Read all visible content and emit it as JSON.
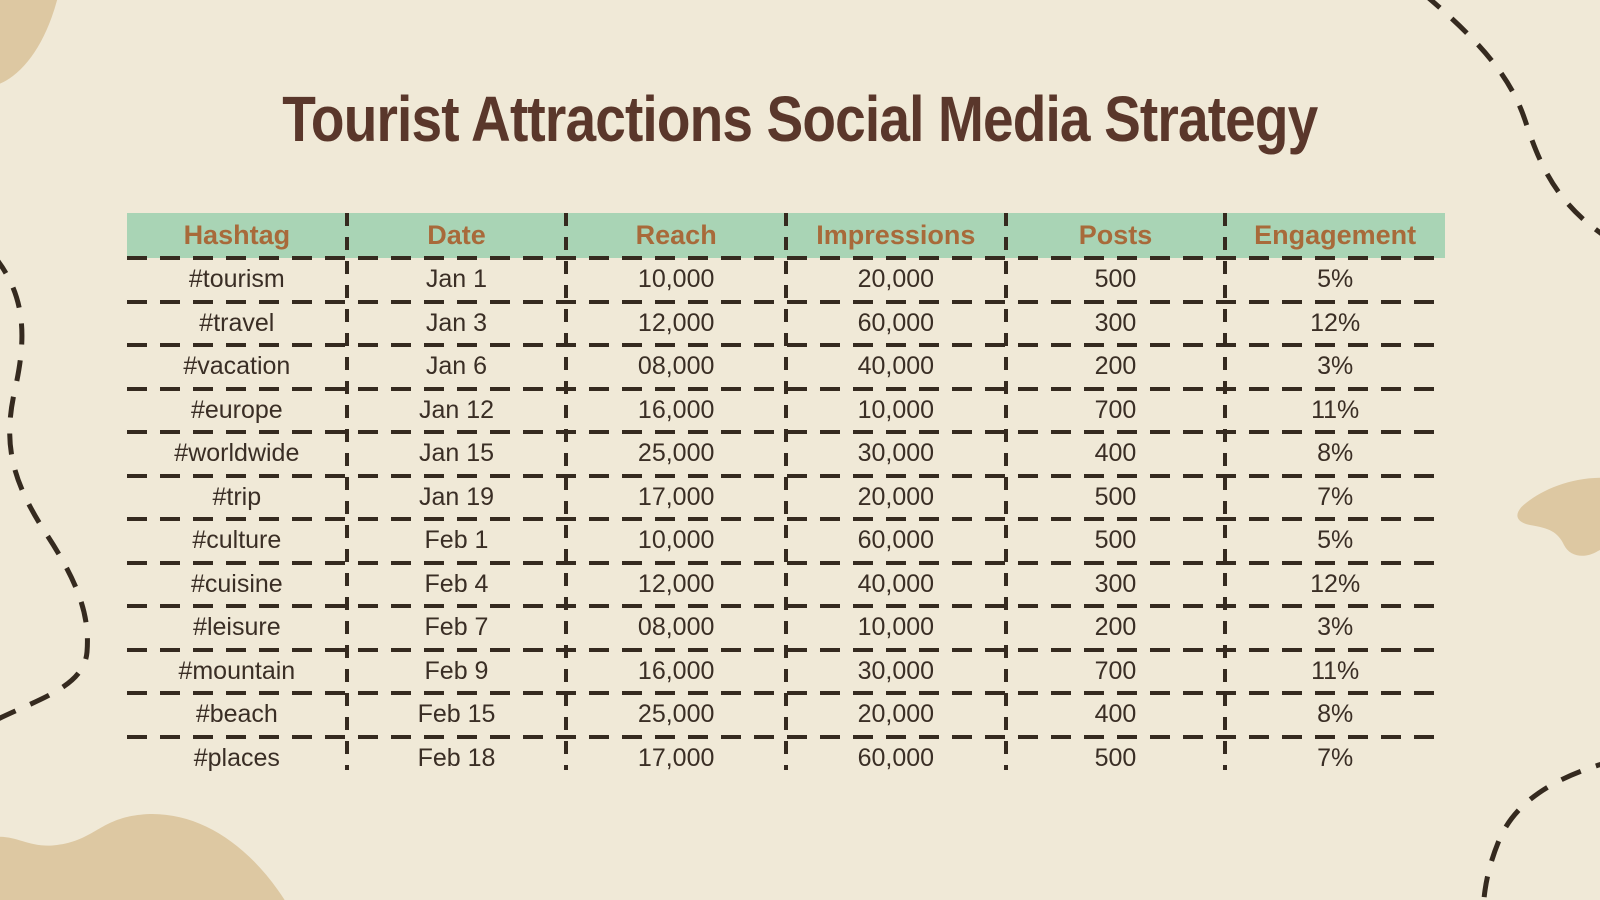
{
  "title": "Tourist Attractions Social Media Strategy",
  "colors": {
    "background": "#f0e9d7",
    "blob": "#ddc8a2",
    "header_bg": "#a9d4b5",
    "header_text": "#a86a3a",
    "title_text": "#5a372b",
    "body_text": "#3a2e25",
    "line": "#352a1f"
  },
  "table": {
    "columns": [
      "Hashtag",
      "Date",
      "Reach",
      "Impressions",
      "Posts",
      "Engagement"
    ],
    "rows": [
      [
        "#tourism",
        "Jan 1",
        "10,000",
        "20,000",
        "500",
        "5%"
      ],
      [
        "#travel",
        "Jan 3",
        "12,000",
        "60,000",
        "300",
        "12%"
      ],
      [
        "#vacation",
        "Jan 6",
        "08,000",
        "40,000",
        "200",
        "3%"
      ],
      [
        "#europe",
        "Jan 12",
        "16,000",
        "10,000",
        "700",
        "11%"
      ],
      [
        "#worldwide",
        "Jan 15",
        "25,000",
        "30,000",
        "400",
        "8%"
      ],
      [
        "#trip",
        "Jan 19",
        "17,000",
        "20,000",
        "500",
        "7%"
      ],
      [
        "#culture",
        "Feb 1",
        "10,000",
        "60,000",
        "500",
        "5%"
      ],
      [
        "#cuisine",
        "Feb 4",
        "12,000",
        "40,000",
        "300",
        "12%"
      ],
      [
        "#leisure",
        "Feb 7",
        "08,000",
        "10,000",
        "200",
        "3%"
      ],
      [
        "#mountain",
        "Feb 9",
        "16,000",
        "30,000",
        "700",
        "11%"
      ],
      [
        "#beach",
        "Feb 15",
        "25,000",
        "20,000",
        "400",
        "8%"
      ],
      [
        "#places",
        "Feb 18",
        "17,000",
        "60,000",
        "500",
        "7%"
      ]
    ]
  }
}
